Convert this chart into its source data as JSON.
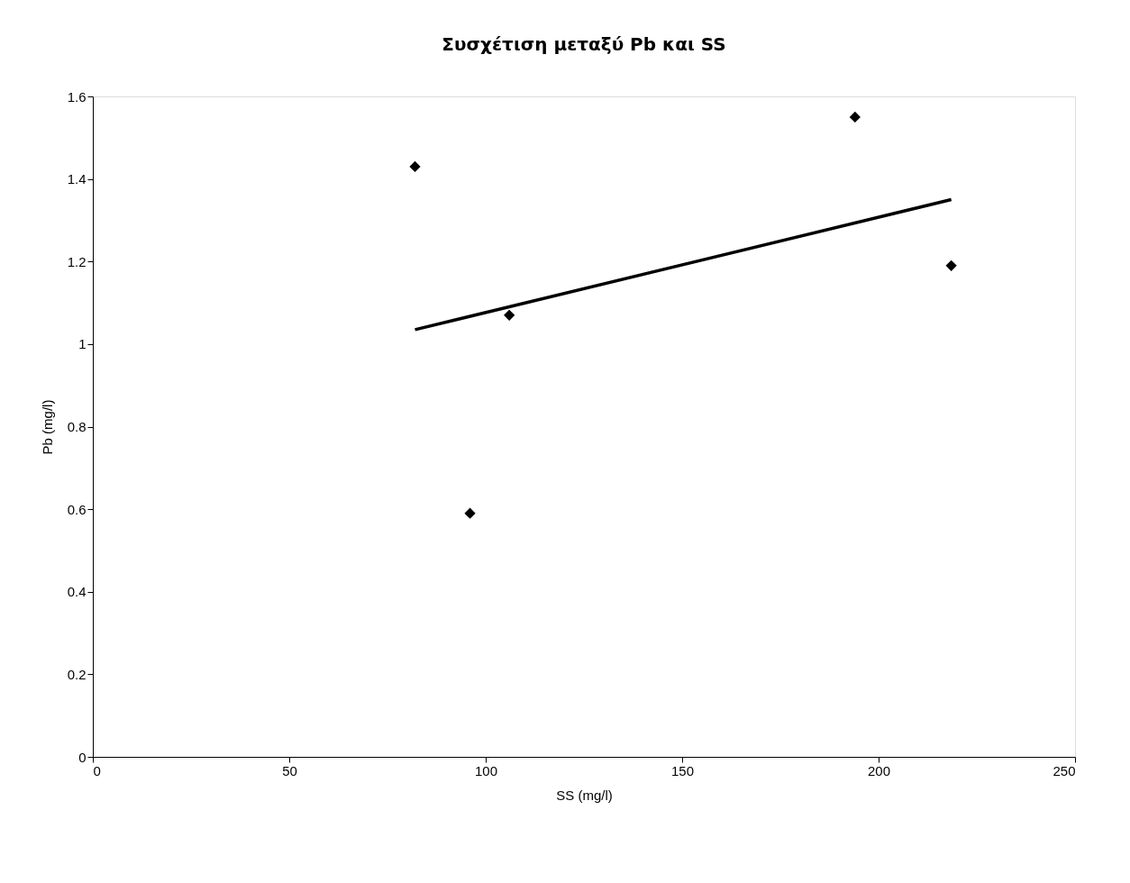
{
  "chart_data": {
    "type": "scatter",
    "title": "Συσχέτιση μεταξύ Pb και SS",
    "xlabel": "SS (mg/l)",
    "ylabel": "Pb (mg/l)",
    "xlim": [
      0,
      250
    ],
    "xticks": [
      0,
      50,
      100,
      150,
      200,
      250
    ],
    "ylim": [
      0,
      1.6
    ],
    "yticks": [
      {
        "value": 0,
        "label": "0"
      },
      0.2,
      0.4,
      0.6,
      0.8,
      {
        "value": 1,
        "label": "1"
      },
      1.2,
      1.4,
      1.6
    ],
    "grid": false,
    "marker": "diamond",
    "series": [
      {
        "color": "#000000",
        "x": [
          82,
          96,
          106,
          194,
          218.5
        ],
        "values": [
          1.43,
          0.59,
          1.07,
          1.55,
          1.19
        ]
      },
      {
        "type": "line",
        "color": "#000000",
        "marker": "none",
        "line_style": "solid",
        "x": [
          82,
          218.5
        ],
        "values": [
          1.035,
          1.35
        ]
      }
    ]
  }
}
